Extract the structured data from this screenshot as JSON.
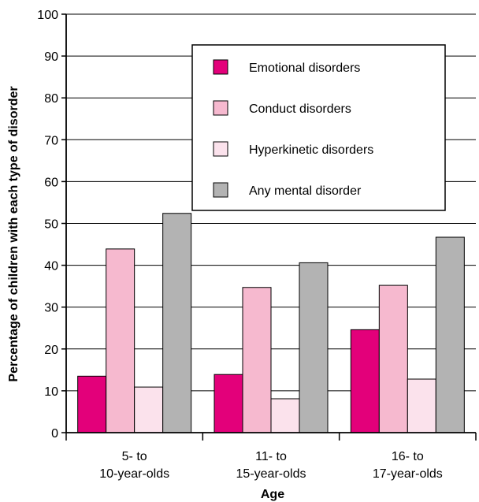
{
  "chart_data": {
    "type": "bar",
    "categories": [
      [
        "5- to",
        "10-year-olds"
      ],
      [
        "11- to",
        "15-year-olds"
      ],
      [
        "16- to",
        "17-year-olds"
      ]
    ],
    "series": [
      {
        "name": "Emotional disorders",
        "color": "#e3007a",
        "values": [
          13.5,
          13.9,
          24.6
        ]
      },
      {
        "name": "Conduct disorders",
        "color": "#f6b9cf",
        "values": [
          43.9,
          34.7,
          35.2
        ]
      },
      {
        "name": "Hyperkinetic disorders",
        "color": "#fbe2ec",
        "values": [
          10.9,
          8.1,
          12.8
        ]
      },
      {
        "name": "Any mental disorder",
        "color": "#b3b3b3",
        "values": [
          52.4,
          40.6,
          46.7
        ]
      }
    ],
    "xlabel": "Age",
    "ylabel": "Percentage of children with each type of disorder",
    "ylim": [
      0,
      100
    ],
    "yticks": [
      0,
      10,
      20,
      30,
      40,
      50,
      60,
      70,
      80,
      90,
      100
    ],
    "grid": true,
    "legend_position": "top-right"
  }
}
